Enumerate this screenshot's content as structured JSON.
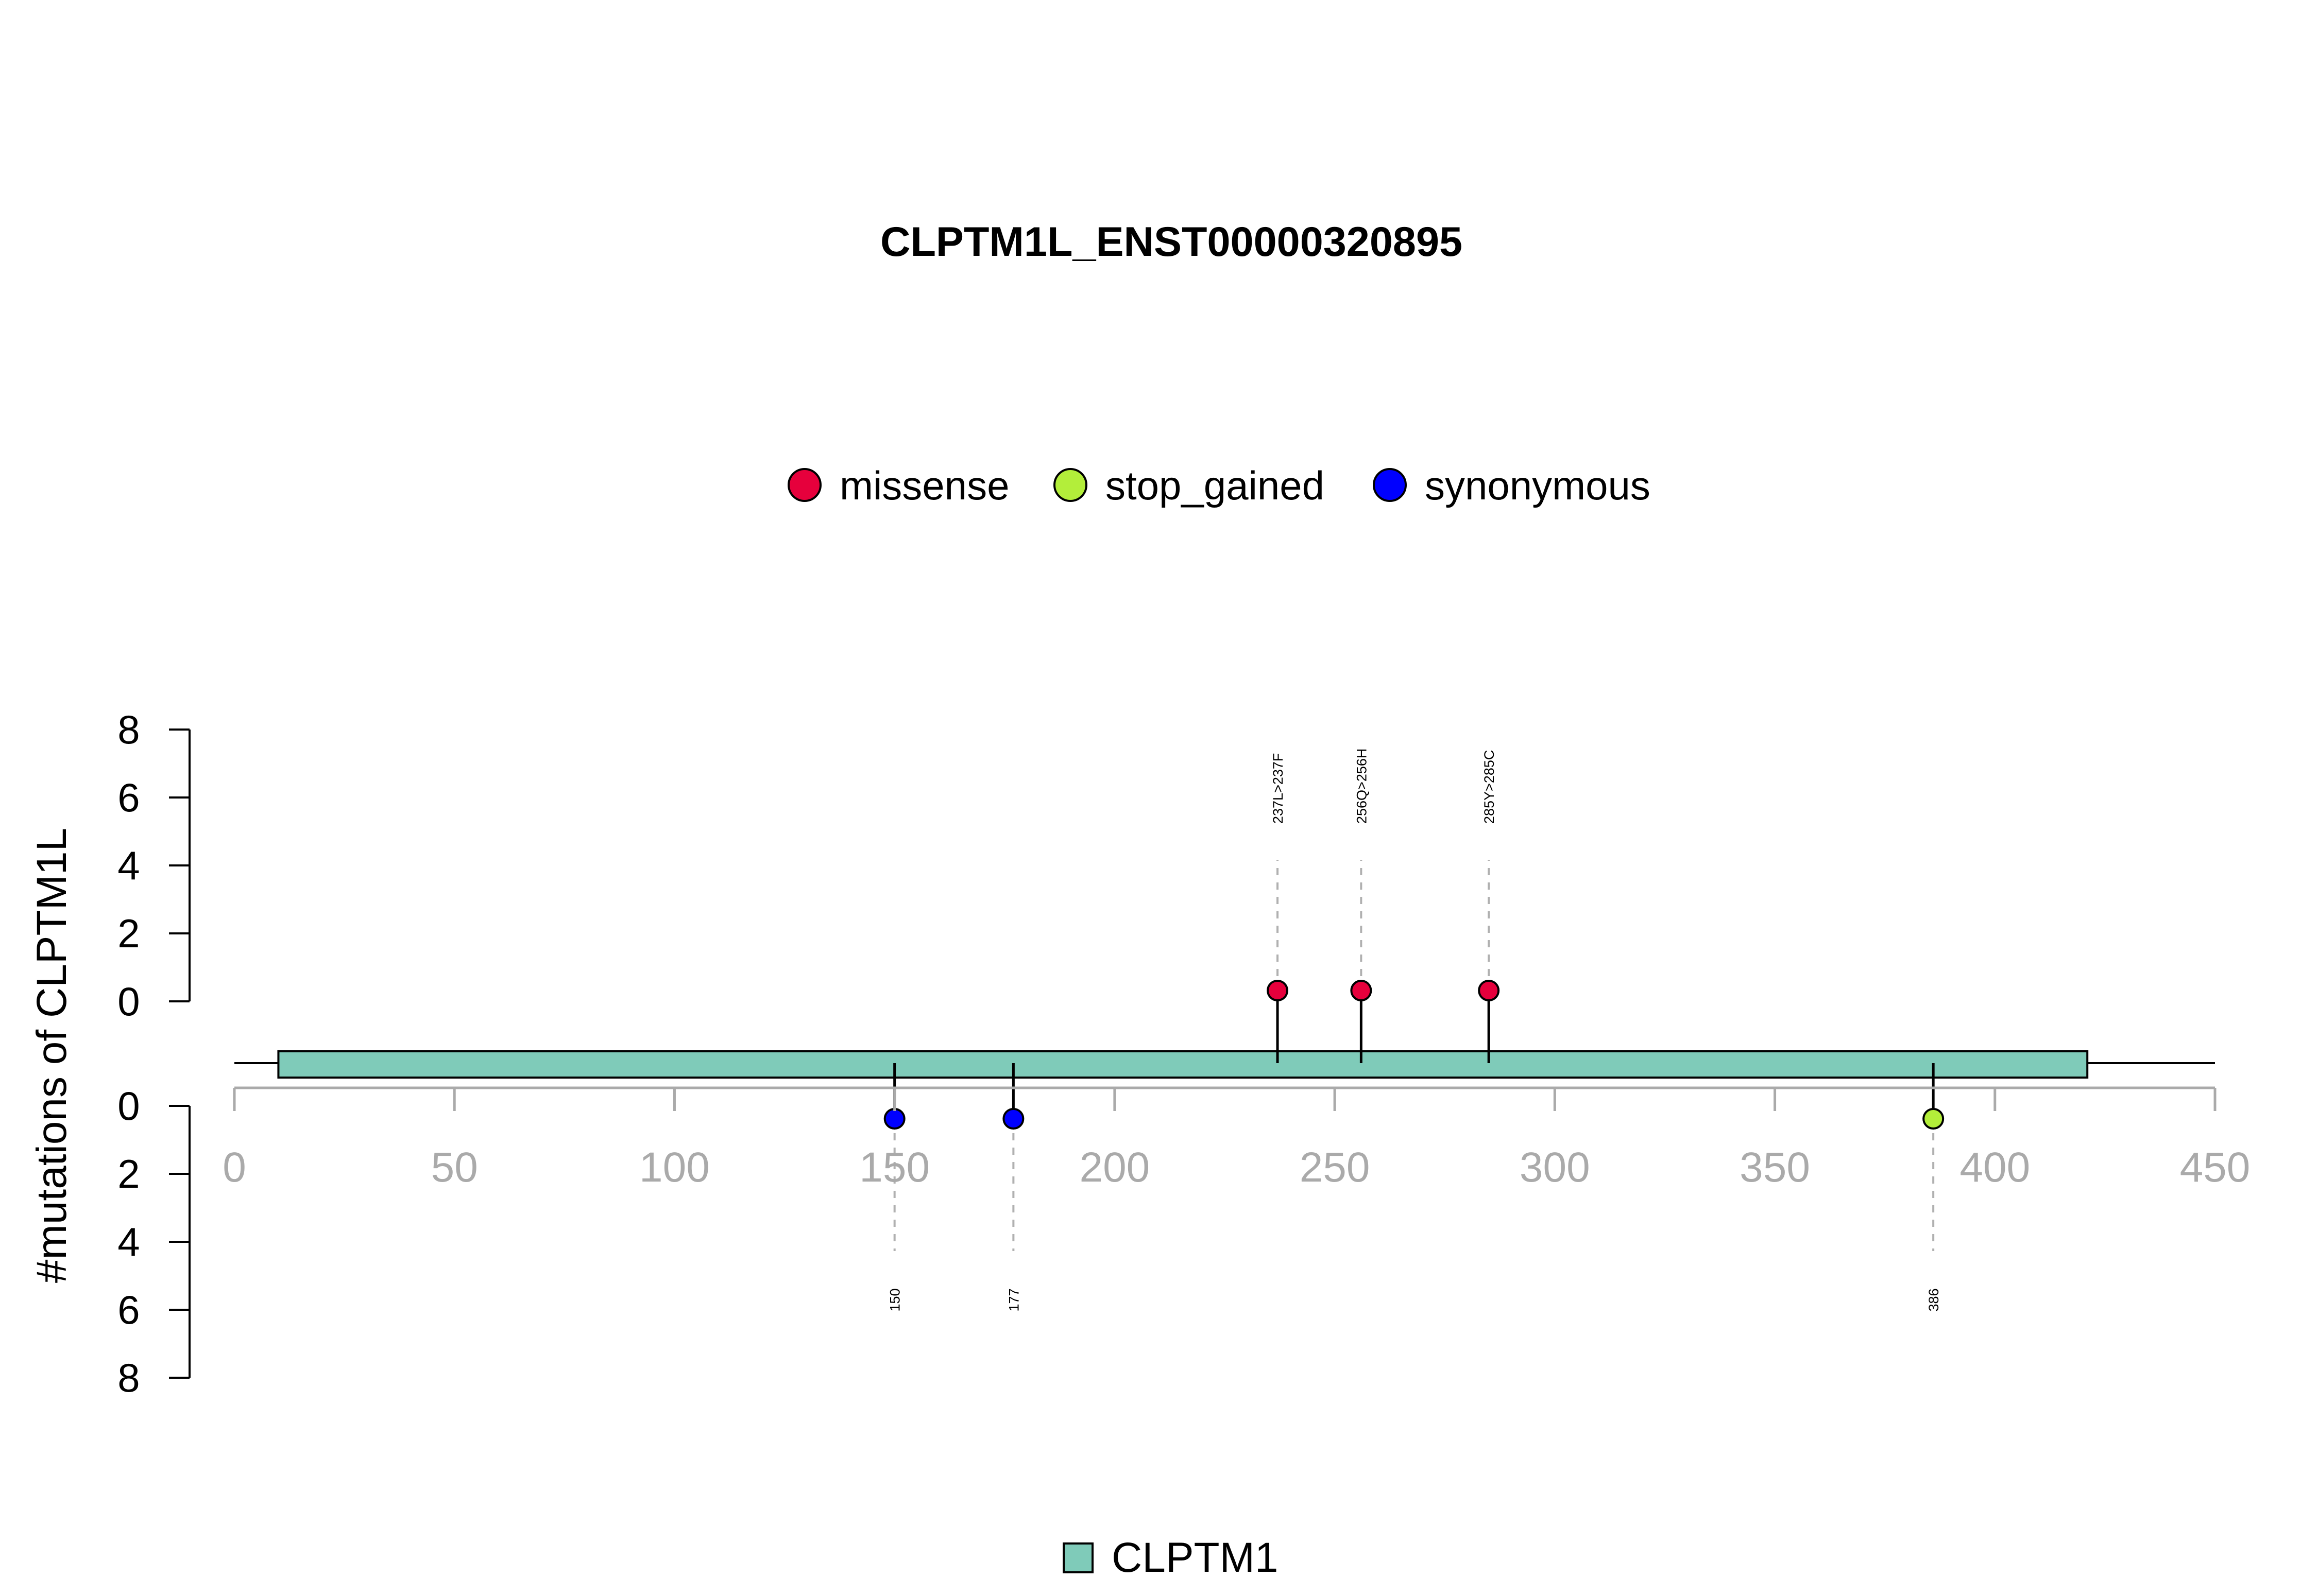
{
  "chart_data": {
    "type": "lollipop",
    "title": "CLPTM1L_ENST00000320895",
    "ylabel": "#mutations of CLPTM1L",
    "xlim": [
      0,
      450
    ],
    "x_ticks": [
      0,
      50,
      100,
      150,
      200,
      250,
      300,
      350,
      400,
      450
    ],
    "y_ticks_up": [
      0,
      2,
      4,
      6,
      8
    ],
    "y_ticks_down": [
      0,
      2,
      4,
      6,
      8
    ],
    "legend_top": [
      {
        "name": "missense",
        "color": "#E6003C"
      },
      {
        "name": "stop_gained",
        "color": "#B3EE3A"
      },
      {
        "name": "synonymous",
        "color": "#0000FF"
      }
    ],
    "domain": {
      "name": "CLPTM1",
      "start": 10,
      "end": 421,
      "color": "#7FCBB9"
    },
    "mutations_up": [
      {
        "position": 237,
        "label": "237L>237F",
        "type": "missense",
        "count": 1
      },
      {
        "position": 256,
        "label": "256Q>256H",
        "type": "missense",
        "count": 1
      },
      {
        "position": 285,
        "label": "285Y>285C",
        "type": "missense",
        "count": 1
      }
    ],
    "mutations_down": [
      {
        "position": 150,
        "label": "150",
        "type": "synonymous",
        "count": 1
      },
      {
        "position": 177,
        "label": "177",
        "type": "synonymous",
        "count": 1
      },
      {
        "position": 386,
        "label": "386",
        "type": "stop_gained",
        "count": 1
      }
    ]
  }
}
